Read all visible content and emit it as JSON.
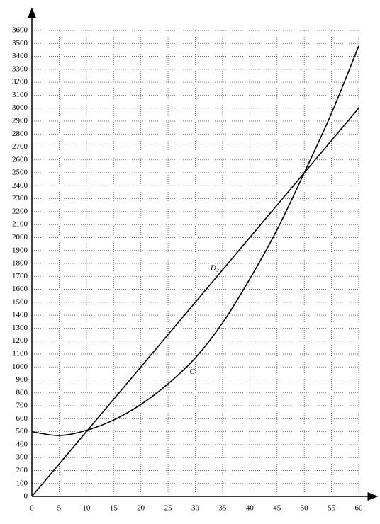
{
  "chart_data": {
    "type": "line",
    "x": [
      0,
      5,
      10,
      15,
      20,
      25,
      30,
      35,
      40,
      45,
      50,
      55,
      60
    ],
    "series": [
      {
        "name": "D₂",
        "color": "#000000",
        "values": [
          0,
          250,
          500,
          750,
          1000,
          1250,
          1500,
          1750,
          2000,
          2250,
          2500,
          2750,
          3000
        ]
      },
      {
        "name": "C",
        "color": "#000000",
        "values": [
          500,
          470,
          510,
          590,
          710,
          870,
          1070,
          1340,
          1680,
          2060,
          2500,
          2960,
          3480
        ]
      }
    ],
    "xlim": [
      0,
      60
    ],
    "xticks": [
      0,
      5,
      10,
      15,
      20,
      25,
      30,
      35,
      40,
      45,
      50,
      55,
      60
    ],
    "ylim": [
      0,
      3600
    ],
    "yticks": [
      0,
      100,
      200,
      300,
      400,
      500,
      600,
      700,
      800,
      900,
      1000,
      1100,
      1200,
      1300,
      1400,
      1500,
      1600,
      1700,
      1800,
      1900,
      2000,
      2100,
      2200,
      2300,
      2400,
      2500,
      2600,
      2700,
      2800,
      2900,
      3000,
      3100,
      3200,
      3300,
      3400,
      3500,
      3600
    ],
    "grid": true
  }
}
